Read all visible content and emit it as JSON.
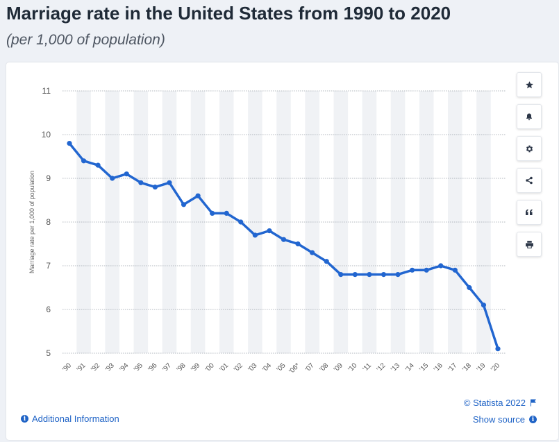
{
  "header": {
    "title": "Marriage rate in the United States from 1990 to 2020",
    "subtitle": "(per 1,000 of population)"
  },
  "toolbar": {
    "buttons": [
      {
        "icon": "star-icon"
      },
      {
        "icon": "bell-icon"
      },
      {
        "icon": "gear-icon"
      },
      {
        "icon": "share-icon"
      },
      {
        "icon": "quote-icon"
      },
      {
        "icon": "print-icon"
      }
    ]
  },
  "footer": {
    "copyright": "© Statista 2022",
    "additional_info": "Additional Information",
    "show_source": "Show source"
  },
  "colors": {
    "line": "#2266d0",
    "band": "#f0f2f5",
    "accent": "#1f63c6"
  },
  "chart_data": {
    "type": "line",
    "ylabel": "Marriage rate per 1,000 of population",
    "xlabel": "",
    "ylim": [
      5,
      11
    ],
    "yticks": [
      5,
      6,
      7,
      8,
      9,
      10,
      11
    ],
    "grid": true,
    "categories": [
      "'90",
      "'91",
      "'92",
      "'93",
      "'94",
      "'95",
      "'96",
      "'97",
      "'98",
      "'99",
      "'00",
      "'01",
      "'02",
      "'03",
      "'04",
      "'05",
      "'06*",
      "'07",
      "'08",
      "'09",
      "'10",
      "'11",
      "'12",
      "'13",
      "'14",
      "'15",
      "'16",
      "'17",
      "'18",
      "'19",
      "'20"
    ],
    "series": [
      {
        "values": [
          9.8,
          9.4,
          9.3,
          9.0,
          9.1,
          8.9,
          8.8,
          8.9,
          8.4,
          8.6,
          8.2,
          8.2,
          8.0,
          7.7,
          7.8,
          7.6,
          7.5,
          7.3,
          7.1,
          6.8,
          6.8,
          6.8,
          6.8,
          6.8,
          6.9,
          6.9,
          7.0,
          6.9,
          6.5,
          6.1,
          5.1
        ]
      }
    ]
  }
}
